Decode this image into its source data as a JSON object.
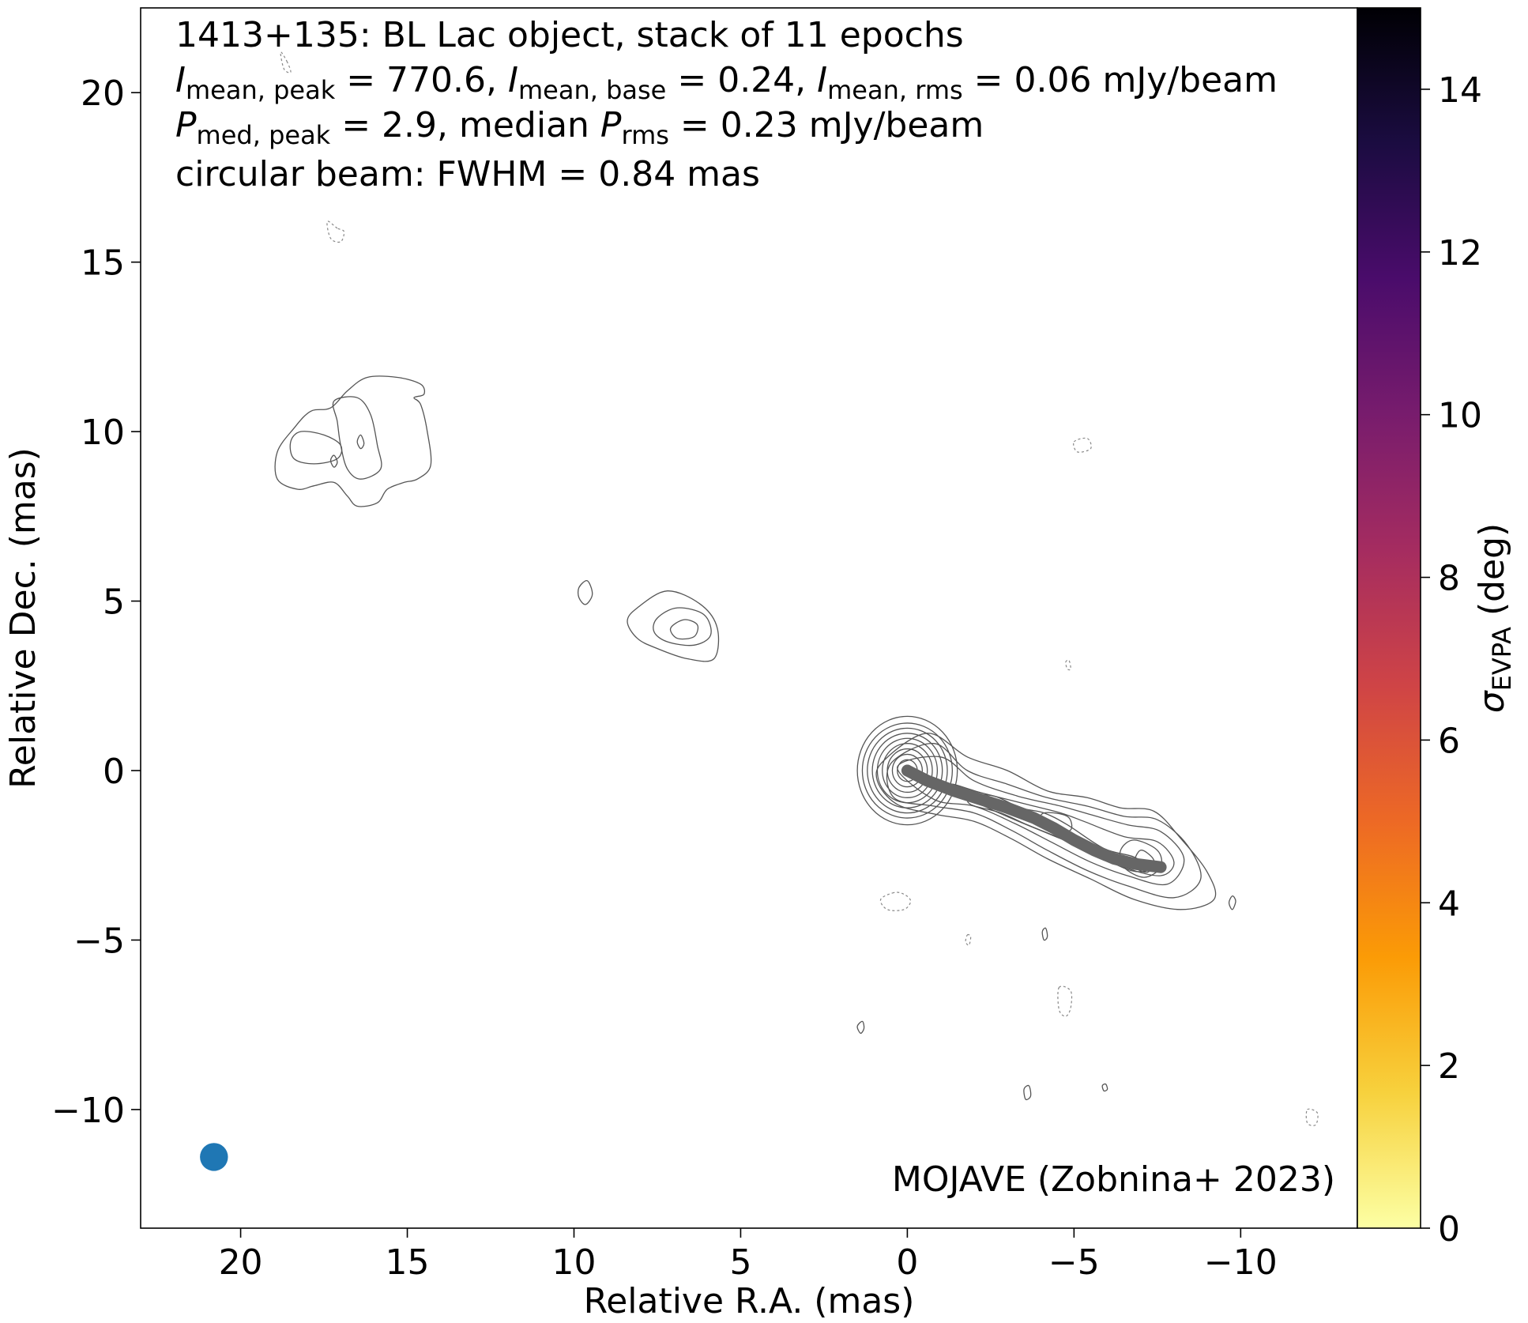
{
  "chart_data": {
    "type": "contour",
    "source": "1413+135",
    "title_lines": [
      {
        "parts": [
          {
            "t": "1413+135: BL Lac object, stack of 11 epochs"
          }
        ]
      },
      {
        "parts": [
          {
            "t": "I",
            "i": true
          },
          {
            "t": "mean, peak",
            "sub": true
          },
          {
            "t": " = 770.6, "
          },
          {
            "t": "I",
            "i": true
          },
          {
            "t": "mean, base",
            "sub": true
          },
          {
            "t": " = 0.24, "
          },
          {
            "t": "I",
            "i": true
          },
          {
            "t": "mean, rms",
            "sub": true
          },
          {
            "t": " = 0.06 mJy/beam"
          }
        ]
      },
      {
        "parts": [
          {
            "t": "P",
            "i": true
          },
          {
            "t": "med, peak",
            "sub": true
          },
          {
            "t": " = 2.9, median "
          },
          {
            "t": "P",
            "i": true
          },
          {
            "t": "rms",
            "sub": true
          },
          {
            "t": " = 0.23 mJy/beam"
          }
        ]
      },
      {
        "parts": [
          {
            "t": "circular beam: FWHM = 0.84 mas"
          }
        ]
      }
    ],
    "credit": "MOJAVE (Zobnina+ 2023)",
    "xlabel": "Relative R.A. (mas)",
    "ylabel": "Relative Dec. (mas)",
    "xlim": [
      23.0,
      -13.5
    ],
    "ylim": [
      -13.5,
      22.5
    ],
    "x_ticks": [
      20,
      15,
      10,
      5,
      0,
      -5,
      -10
    ],
    "x_tick_labels": [
      "20",
      "15",
      "10",
      "5",
      "0",
      "−5",
      "−10"
    ],
    "y_ticks": [
      20,
      15,
      10,
      5,
      0,
      -5,
      -10
    ],
    "y_tick_labels": [
      "20",
      "15",
      "10",
      "5",
      "0",
      "−5",
      "−10"
    ],
    "colorbar": {
      "label_parts": [
        {
          "t": "σ",
          "i": true
        },
        {
          "t": "EVPA",
          "sub": true
        },
        {
          "t": " (deg)"
        }
      ],
      "range": [
        0,
        15
      ],
      "ticks": [
        0,
        2,
        4,
        6,
        8,
        10,
        12,
        14
      ],
      "tick_labels": [
        "0",
        "2",
        "4",
        "6",
        "8",
        "10",
        "12",
        "14"
      ],
      "colormap": "inferno_r",
      "colormap_stops": [
        "#fcffa4",
        "#f7d13d",
        "#fb9b06",
        "#ed6925",
        "#cf4446",
        "#a52c60",
        "#781c6d",
        "#4a0c6b",
        "#1b0c41",
        "#000004"
      ]
    },
    "beam": {
      "x": 20.8,
      "y": -11.4,
      "fwhm_mas": 0.84,
      "color": "#1f77b4"
    },
    "ridge_line": {
      "color": "#666666",
      "points": [
        [
          0,
          0
        ],
        [
          -0.6,
          -0.3
        ],
        [
          -1.4,
          -0.6
        ],
        [
          -2.2,
          -0.85
        ],
        [
          -3.0,
          -1.1
        ],
        [
          -3.8,
          -1.4
        ],
        [
          -4.4,
          -1.7
        ],
        [
          -5.0,
          -2.05
        ],
        [
          -5.6,
          -2.35
        ],
        [
          -6.2,
          -2.6
        ],
        [
          -6.8,
          -2.75
        ],
        [
          -7.6,
          -2.85
        ]
      ]
    },
    "contours": {
      "positive_color": "#555555",
      "negative_color": "#888888",
      "core_levels": [
        {
          "rx": 1.5,
          "ry": 1.6
        },
        {
          "rx": 1.35,
          "ry": 1.4
        },
        {
          "rx": 1.2,
          "ry": 1.25
        },
        {
          "rx": 1.05,
          "ry": 1.1
        },
        {
          "rx": 0.9,
          "ry": 0.95
        },
        {
          "rx": 0.75,
          "ry": 0.8
        },
        {
          "rx": 0.6,
          "ry": 0.64
        },
        {
          "rx": 0.45,
          "ry": 0.48
        },
        {
          "rx": 0.3,
          "ry": 0.32
        },
        {
          "rx": 0.15,
          "ry": 0.16
        }
      ],
      "closed": [
        [
          [
            0.7,
            0.3
          ],
          [
            -0.6,
            1.1
          ],
          [
            -1.8,
            0.4
          ],
          [
            -3.0,
            0.0
          ],
          [
            -4.2,
            -0.6
          ],
          [
            -5.4,
            -0.8
          ],
          [
            -6.4,
            -1.1
          ],
          [
            -7.4,
            -1.2
          ],
          [
            -8.2,
            -2.0
          ],
          [
            -9.0,
            -3.0
          ],
          [
            -9.2,
            -3.8
          ],
          [
            -8.2,
            -4.1
          ],
          [
            -6.8,
            -3.8
          ],
          [
            -5.5,
            -3.2
          ],
          [
            -4.2,
            -2.6
          ],
          [
            -3.1,
            -2.0
          ],
          [
            -2.0,
            -1.5
          ],
          [
            -0.9,
            -1.3
          ],
          [
            0.3,
            -1.0
          ],
          [
            0.9,
            -0.3
          ]
        ],
        [
          [
            0.5,
            0.2
          ],
          [
            -0.8,
            0.8
          ],
          [
            -1.8,
            0.0
          ],
          [
            -3.0,
            -0.4
          ],
          [
            -4.2,
            -0.8
          ],
          [
            -5.4,
            -1.05
          ],
          [
            -6.5,
            -1.35
          ],
          [
            -7.5,
            -1.45
          ],
          [
            -8.4,
            -2.2
          ],
          [
            -8.8,
            -3.2
          ],
          [
            -8.0,
            -3.75
          ],
          [
            -6.6,
            -3.4
          ],
          [
            -5.4,
            -2.95
          ],
          [
            -4.2,
            -2.35
          ],
          [
            -3.1,
            -1.75
          ],
          [
            -2.0,
            -1.25
          ],
          [
            -0.8,
            -1.05
          ],
          [
            0.4,
            -0.8
          ]
        ],
        [
          [
            0.3,
            0.1
          ],
          [
            -1.0,
            0.4
          ],
          [
            -2.0,
            -0.3
          ],
          [
            -3.3,
            -0.75
          ],
          [
            -4.6,
            -1.05
          ],
          [
            -5.5,
            -1.3
          ],
          [
            -6.6,
            -1.6
          ],
          [
            -7.6,
            -1.8
          ],
          [
            -8.3,
            -2.6
          ],
          [
            -7.8,
            -3.35
          ],
          [
            -6.6,
            -3.1
          ],
          [
            -5.5,
            -2.7
          ],
          [
            -4.3,
            -2.1
          ],
          [
            -3.2,
            -1.55
          ],
          [
            -2.0,
            -1.05
          ],
          [
            -0.8,
            -0.85
          ]
        ],
        [
          [
            -1.3,
            -0.4
          ],
          [
            -2.2,
            -0.65
          ],
          [
            -3.6,
            -1.0
          ],
          [
            -4.6,
            -1.25
          ],
          [
            -5.3,
            -1.5
          ],
          [
            -6.5,
            -1.95
          ],
          [
            -7.5,
            -2.1
          ],
          [
            -8.0,
            -2.7
          ],
          [
            -7.6,
            -3.1
          ],
          [
            -6.5,
            -2.85
          ],
          [
            -5.3,
            -2.3
          ],
          [
            -4.2,
            -1.85
          ],
          [
            -3.1,
            -1.4
          ],
          [
            -2.0,
            -0.9
          ]
        ],
        [
          [
            -1.9,
            -0.75
          ],
          [
            -2.6,
            -0.75
          ],
          [
            -3.4,
            -1.1
          ],
          [
            -4.1,
            -1.25
          ],
          [
            -4.8,
            -1.6
          ],
          [
            -5.9,
            -2.3
          ],
          [
            -6.8,
            -2.55
          ],
          [
            -7.3,
            -2.9
          ],
          [
            -6.7,
            -2.95
          ],
          [
            -5.6,
            -2.45
          ],
          [
            -4.6,
            -2.0
          ],
          [
            -3.6,
            -1.6
          ],
          [
            -2.8,
            -1.25
          ],
          [
            -1.9,
            -1.0
          ]
        ],
        [
          [
            -6.8,
            -2.05
          ],
          [
            -7.5,
            -2.35
          ],
          [
            -7.6,
            -2.85
          ],
          [
            -7.1,
            -3.15
          ],
          [
            -6.5,
            -2.85
          ],
          [
            -6.4,
            -2.35
          ]
        ],
        [
          [
            -7.0,
            -2.35
          ],
          [
            -7.4,
            -2.65
          ],
          [
            -7.2,
            -3.0
          ],
          [
            -6.8,
            -2.8
          ]
        ],
        [
          [
            -4.1,
            -1.25
          ],
          [
            -4.8,
            -1.35
          ],
          [
            -4.9,
            -1.75
          ],
          [
            -4.4,
            -1.8
          ],
          [
            -4.0,
            -1.55
          ]
        ],
        [
          [
            18.9,
            9.4
          ],
          [
            18.4,
            10.1
          ],
          [
            17.9,
            10.6
          ],
          [
            17.3,
            10.7
          ],
          [
            16.8,
            11.2
          ],
          [
            16.2,
            11.6
          ],
          [
            15.3,
            11.6
          ],
          [
            14.6,
            11.4
          ],
          [
            14.5,
            11.1
          ],
          [
            14.8,
            11.0
          ],
          [
            14.6,
            10.8
          ],
          [
            14.4,
            10.0
          ],
          [
            14.3,
            9.0
          ],
          [
            14.7,
            8.6
          ],
          [
            15.1,
            8.5
          ],
          [
            15.6,
            8.3
          ],
          [
            15.9,
            7.9
          ],
          [
            16.5,
            7.8
          ],
          [
            16.8,
            8.1
          ],
          [
            17.2,
            8.5
          ],
          [
            17.8,
            8.4
          ],
          [
            18.3,
            8.3
          ],
          [
            18.9,
            8.6
          ]
        ],
        [
          [
            18.5,
            9.7
          ],
          [
            18.2,
            10.0
          ],
          [
            17.5,
            9.9
          ],
          [
            17.0,
            9.6
          ],
          [
            17.1,
            9.2
          ],
          [
            17.8,
            9.05
          ],
          [
            18.4,
            9.2
          ]
        ],
        [
          [
            17.2,
            10.9
          ],
          [
            16.5,
            11.0
          ],
          [
            16.1,
            10.5
          ],
          [
            15.9,
            9.6
          ],
          [
            15.8,
            8.9
          ],
          [
            16.4,
            8.6
          ],
          [
            16.8,
            8.9
          ],
          [
            17.0,
            9.6
          ],
          [
            17.1,
            10.3
          ]
        ],
        [
          [
            16.4,
            9.9
          ],
          [
            16.3,
            9.65
          ],
          [
            16.4,
            9.5
          ],
          [
            16.5,
            9.7
          ]
        ],
        [
          [
            17.2,
            9.3
          ],
          [
            17.1,
            9.1
          ],
          [
            17.2,
            8.95
          ],
          [
            17.3,
            9.15
          ]
        ],
        [
          [
            8.1,
            4.8
          ],
          [
            7.2,
            5.3
          ],
          [
            6.2,
            4.9
          ],
          [
            5.7,
            4.2
          ],
          [
            5.8,
            3.3
          ],
          [
            6.6,
            3.3
          ],
          [
            7.5,
            3.6
          ],
          [
            8.1,
            3.9
          ],
          [
            8.4,
            4.4
          ]
        ],
        [
          [
            7.5,
            4.5
          ],
          [
            6.9,
            4.8
          ],
          [
            6.1,
            4.6
          ],
          [
            5.9,
            4.0
          ],
          [
            6.4,
            3.7
          ],
          [
            7.2,
            3.8
          ],
          [
            7.6,
            4.1
          ]
        ],
        [
          [
            7.1,
            4.2
          ],
          [
            6.7,
            4.45
          ],
          [
            6.3,
            4.3
          ],
          [
            6.4,
            3.95
          ],
          [
            6.9,
            3.9
          ]
        ],
        [
          [
            9.85,
            5.4
          ],
          [
            9.6,
            5.6
          ],
          [
            9.45,
            5.2
          ],
          [
            9.65,
            4.9
          ],
          [
            9.85,
            5.1
          ]
        ],
        [
          [
            -9.65,
            -3.9
          ],
          [
            -9.75,
            -3.7
          ],
          [
            -9.85,
            -3.85
          ],
          [
            -9.75,
            -4.1
          ]
        ],
        [
          [
            -4.05,
            -4.75
          ],
          [
            -4.15,
            -4.65
          ],
          [
            -4.2,
            -4.9
          ],
          [
            -4.1,
            -5.0
          ]
        ],
        [
          [
            1.35,
            -7.4
          ],
          [
            1.5,
            -7.55
          ],
          [
            1.4,
            -7.75
          ],
          [
            1.3,
            -7.6
          ]
        ],
        [
          [
            -3.5,
            -9.4
          ],
          [
            -3.65,
            -9.3
          ],
          [
            -3.7,
            -9.6
          ],
          [
            -3.55,
            -9.7
          ]
        ],
        [
          [
            -5.85,
            -9.3
          ],
          [
            -5.95,
            -9.25
          ],
          [
            -6.0,
            -9.4
          ],
          [
            -5.9,
            -9.45
          ]
        ]
      ],
      "dashed": [
        [
          [
            17.1,
            16.0
          ],
          [
            17.4,
            16.2
          ],
          [
            17.3,
            15.7
          ],
          [
            17.0,
            15.6
          ],
          [
            16.9,
            15.9
          ]
        ],
        [
          [
            18.6,
            20.9
          ],
          [
            18.8,
            21.2
          ],
          [
            18.7,
            20.7
          ],
          [
            18.5,
            20.6
          ]
        ],
        [
          [
            -5.0,
            9.7
          ],
          [
            -5.4,
            9.8
          ],
          [
            -5.5,
            9.5
          ],
          [
            -5.1,
            9.4
          ]
        ],
        [
          [
            -4.75,
            3.2
          ],
          [
            -4.85,
            3.25
          ],
          [
            -4.9,
            3.0
          ],
          [
            -4.8,
            3.0
          ]
        ],
        [
          [
            0.4,
            -3.6
          ],
          [
            0.8,
            -3.8
          ],
          [
            0.6,
            -4.1
          ],
          [
            0.1,
            -4.1
          ],
          [
            -0.1,
            -3.85
          ],
          [
            0.1,
            -3.65
          ]
        ],
        [
          [
            -1.8,
            -4.85
          ],
          [
            -1.9,
            -4.9
          ],
          [
            -1.85,
            -5.15
          ],
          [
            -1.75,
            -5.05
          ]
        ],
        [
          [
            -4.55,
            -6.4
          ],
          [
            -4.9,
            -6.5
          ],
          [
            -4.9,
            -7.0
          ],
          [
            -4.75,
            -7.25
          ],
          [
            -4.55,
            -7.05
          ]
        ],
        [
          [
            -12.0,
            -10.0
          ],
          [
            -12.3,
            -10.1
          ],
          [
            -12.25,
            -10.45
          ],
          [
            -12.0,
            -10.4
          ]
        ]
      ]
    }
  }
}
